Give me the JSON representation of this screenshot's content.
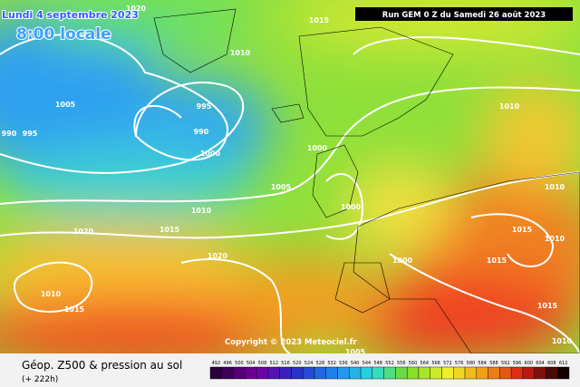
{
  "header": {
    "date": "Lundi 4 septembre 2023",
    "time": "8:00 locale",
    "run": "Run GEM 0 Z du Samedi 26 août 2023"
  },
  "copyright": "Copyright © 2023 Meteociel.fr",
  "footer": {
    "title": "Géop. Z500 & pression au sol",
    "lead": "(+ 222h)"
  },
  "isobar_labels": [
    "1020",
    "1015",
    "1010",
    "1005",
    "990",
    "995",
    "995",
    "990",
    "1000",
    "1000",
    "1005",
    "1010",
    "1000",
    "1015",
    "1020",
    "1020",
    "1010",
    "1010",
    "1015",
    "1010",
    "1000",
    "1015",
    "1010",
    "1015",
    "1015",
    "1010",
    "1005"
  ],
  "colorbar": [
    492,
    496,
    500,
    504,
    508,
    512,
    516,
    520,
    524,
    528,
    532,
    536,
    540,
    544,
    548,
    552,
    556,
    560,
    564,
    568,
    572,
    576,
    580,
    584,
    588,
    592,
    596,
    600,
    604,
    608,
    612
  ]
}
